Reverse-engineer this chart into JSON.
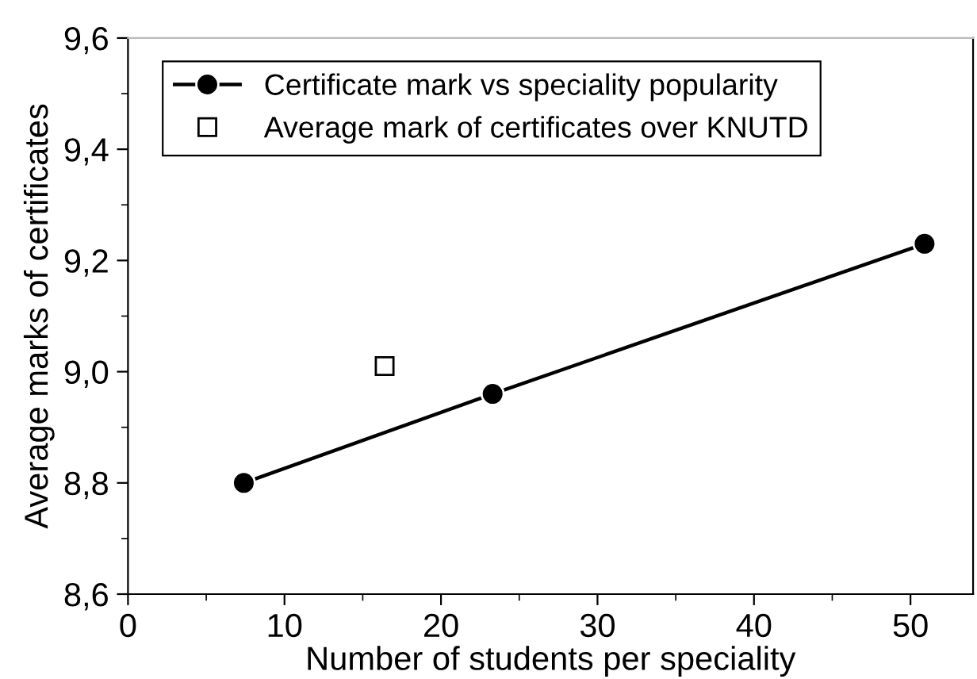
{
  "chart_data": {
    "type": "line",
    "xlabel": "Number of students per speciality",
    "ylabel": "Average marks of certificates",
    "xlim": [
      0,
      54
    ],
    "xticks": [
      0,
      10,
      20,
      30,
      40,
      50
    ],
    "ylim": [
      8.6,
      9.6
    ],
    "yticks": [
      {
        "value": 8.6,
        "label": "8,6"
      },
      {
        "value": 8.8,
        "label": "8,8"
      },
      {
        "value": 9.0,
        "label": "9,0"
      },
      {
        "value": 9.2,
        "label": "9,2"
      },
      {
        "value": 9.4,
        "label": "9,4"
      },
      {
        "value": 9.6,
        "label": "9,6"
      }
    ],
    "series": [
      {
        "name": "Certificate mark vs speciality popularity",
        "marker": "circle",
        "line_style": "solid",
        "color": "#000000",
        "x": [
          7.4,
          23.3,
          50.9
        ],
        "values": [
          8.8,
          8.96,
          9.23
        ]
      },
      {
        "name": "Average mark of certificates over KNUTD",
        "type": "scatter",
        "marker": "square",
        "color": "#000000",
        "x": [
          16.4
        ],
        "values": [
          9.01
        ]
      }
    ],
    "legend": "top left",
    "grid": false
  }
}
